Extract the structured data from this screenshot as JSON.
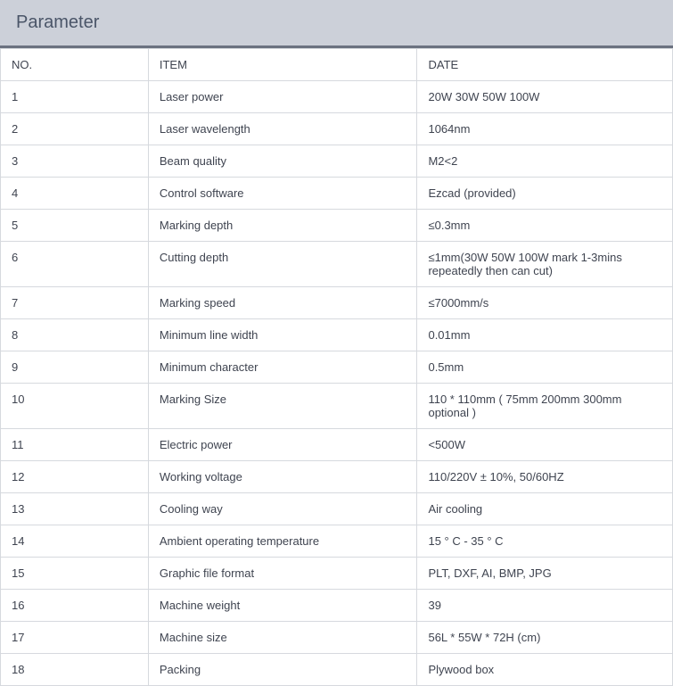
{
  "header": {
    "title": "Parameter"
  },
  "table": {
    "columns": [
      "NO.",
      "ITEM",
      "DATE"
    ],
    "rows": [
      [
        "1",
        "Laser power",
        "20W 30W 50W 100W"
      ],
      [
        "2",
        "Laser wavelength",
        "1064nm"
      ],
      [
        "3",
        "Beam quality",
        "M2<2"
      ],
      [
        "4",
        "Control software",
        "Ezcad (provided)"
      ],
      [
        "5",
        "Marking depth",
        "≤0.3mm"
      ],
      [
        "6",
        "Cutting depth",
        "≤1mm(30W 50W 100W mark 1-3mins repeatedly then can cut)"
      ],
      [
        "7",
        "Marking speed",
        "≤7000mm/s"
      ],
      [
        "8",
        "Minimum line width",
        "0.01mm"
      ],
      [
        "9",
        "Minimum character",
        "0.5mm"
      ],
      [
        "10",
        "Marking Size",
        "110 * 110mm ( 75mm 200mm 300mm optional )"
      ],
      [
        "11",
        "Electric power",
        "<500W"
      ],
      [
        "12",
        "Working voltage",
        "110/220V ± 10%, 50/60HZ"
      ],
      [
        "13",
        "Cooling way",
        "Air cooling"
      ],
      [
        "14",
        "Ambient operating temperature",
        "15 ° C - 35 ° C"
      ],
      [
        "15",
        "Graphic file format",
        "PLT, DXF, AI, BMP, JPG"
      ],
      [
        "16",
        "Machine weight",
        "39"
      ],
      [
        "17",
        "Machine size",
        "56L * 55W * 72H (cm)"
      ],
      [
        "18",
        "Packing",
        "Plywood box"
      ]
    ],
    "style": {
      "header_bg": "#ccd0d9",
      "header_text_color": "#4a5568",
      "header_border_bottom": "#6b7280",
      "cell_border_color": "#d6d9de",
      "cell_text_color": "#3f4450",
      "font_size_header": 20,
      "font_size_cell": 13,
      "col_widths_pct": [
        22,
        40,
        38
      ]
    }
  }
}
